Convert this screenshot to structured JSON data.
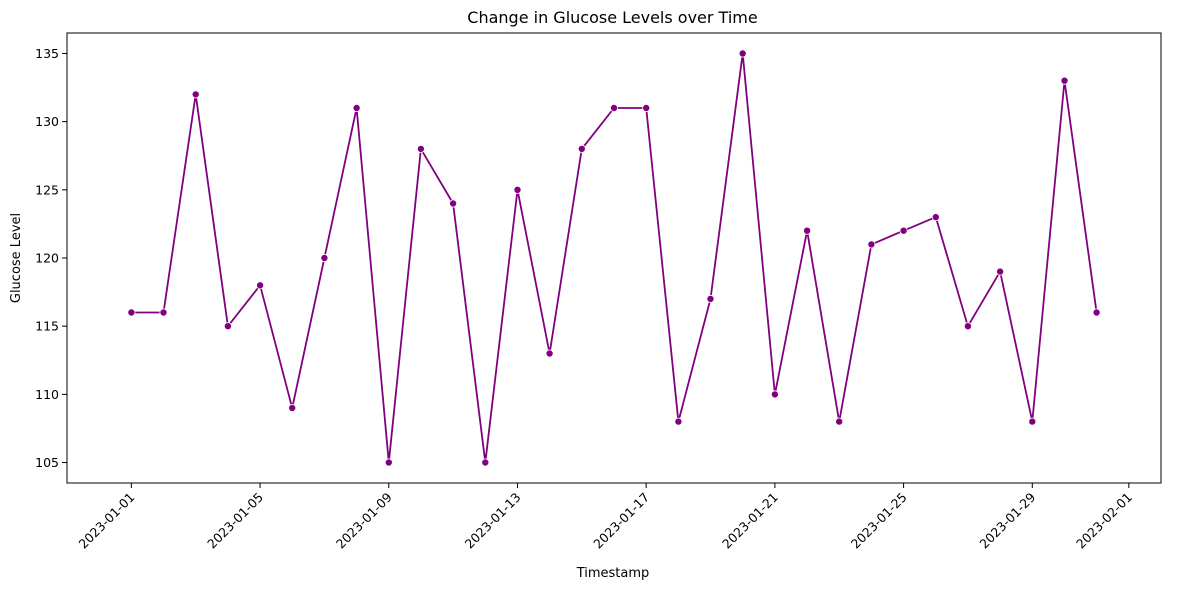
{
  "chart_data": {
    "type": "line",
    "title": "Change in Glucose Levels over Time",
    "xlabel": "Timestamp",
    "ylabel": "Glucose Level",
    "ylim": [
      103.5,
      136.5
    ],
    "xlim": [
      "2022-12-30",
      "2023-02-02"
    ],
    "x_ticks": [
      "2023-01-01",
      "2023-01-05",
      "2023-01-09",
      "2023-01-13",
      "2023-01-17",
      "2023-01-21",
      "2023-01-25",
      "2023-01-29",
      "2023-02-01"
    ],
    "y_ticks": [
      105,
      110,
      115,
      120,
      125,
      130,
      135
    ],
    "grid": false,
    "line_color": "#800080",
    "marker": "circle",
    "series": [
      {
        "x": [
          "2023-01-01",
          "2023-01-02",
          "2023-01-03",
          "2023-01-04",
          "2023-01-05",
          "2023-01-06",
          "2023-01-07",
          "2023-01-08",
          "2023-01-09",
          "2023-01-10",
          "2023-01-11",
          "2023-01-12",
          "2023-01-13",
          "2023-01-14",
          "2023-01-15",
          "2023-01-16",
          "2023-01-17",
          "2023-01-18",
          "2023-01-19",
          "2023-01-20",
          "2023-01-21",
          "2023-01-22",
          "2023-01-23",
          "2023-01-24",
          "2023-01-25",
          "2023-01-26",
          "2023-01-27",
          "2023-01-28",
          "2023-01-29",
          "2023-01-30",
          "2023-01-31"
        ],
        "values": [
          116,
          116,
          132,
          115,
          118,
          109,
          120,
          131,
          105,
          128,
          124,
          105,
          125,
          113,
          128,
          131,
          131,
          108,
          117,
          135,
          110,
          122,
          108,
          121,
          122,
          123,
          115,
          119,
          108,
          133,
          116
        ]
      }
    ]
  }
}
